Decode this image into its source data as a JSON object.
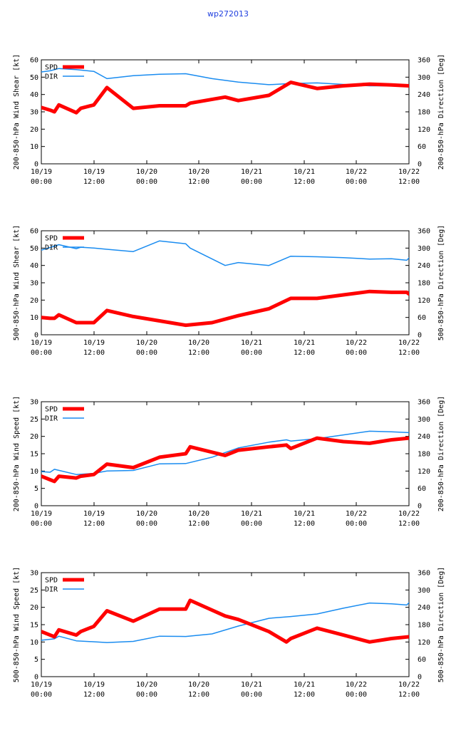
{
  "title": "wp272013",
  "colors": {
    "spd": "#ff0000",
    "dir": "#1a8cf0",
    "title": "#1f3fdf"
  },
  "x_ticks": [
    [
      "10/19",
      "00:00"
    ],
    [
      "10/19",
      "12:00"
    ],
    [
      "10/20",
      "00:00"
    ],
    [
      "10/20",
      "12:00"
    ],
    [
      "10/21",
      "00:00"
    ],
    [
      "10/21",
      "12:00"
    ],
    [
      "10/22",
      "00:00"
    ],
    [
      "10/22",
      "12:00"
    ]
  ],
  "chart_data": [
    {
      "type": "line",
      "ylabel": "200-850-hPa Wind Shear [kt]",
      "y2label": "200-850-hPa Direction [Deg]",
      "ylim": [
        0,
        60
      ],
      "y2lim": [
        0,
        360
      ],
      "yticks": [
        "0",
        "10",
        "20",
        "30",
        "40",
        "50",
        "60"
      ],
      "y2ticks": [
        "0",
        "60",
        "120",
        "180",
        "240",
        "300",
        "360"
      ],
      "xlim": [
        0,
        84
      ],
      "series": [
        {
          "name": "SPD",
          "axis": "left",
          "x": [
            0,
            2,
            3,
            4,
            8,
            9,
            12,
            15,
            21,
            27,
            33,
            34,
            42,
            45,
            52,
            57,
            63,
            69,
            75,
            80,
            84
          ],
          "y": [
            32.5,
            31,
            30,
            34,
            29.5,
            32,
            34,
            44,
            32,
            33.5,
            33.5,
            35,
            38.5,
            36.5,
            39.5,
            47,
            43.5,
            45,
            46,
            45.5,
            45
          ]
        },
        {
          "name": "DIR",
          "axis": "right",
          "x": [
            0,
            2,
            4,
            8,
            12,
            15,
            21,
            27,
            33,
            39,
            45,
            52,
            57,
            63,
            69,
            75,
            80,
            84
          ],
          "y": [
            318,
            322,
            330,
            326,
            320,
            295,
            305,
            310,
            312,
            295,
            283,
            274,
            278,
            280,
            275,
            270,
            270,
            270
          ]
        }
      ]
    },
    {
      "type": "line",
      "ylabel": "500-850-hPa Wind Shear [kt]",
      "y2label": "500-850-hPa Direction [Deg]",
      "ylim": [
        0,
        60
      ],
      "y2lim": [
        0,
        360
      ],
      "yticks": [
        "0",
        "10",
        "20",
        "30",
        "40",
        "50",
        "60"
      ],
      "y2ticks": [
        "0",
        "60",
        "120",
        "180",
        "240",
        "300",
        "360"
      ],
      "xlim": [
        0,
        84
      ],
      "series": [
        {
          "name": "SPD",
          "axis": "left",
          "x": [
            0,
            2,
            3,
            4,
            8,
            9,
            12,
            15,
            21,
            27,
            33,
            39,
            45,
            52,
            57,
            63,
            69,
            75,
            80,
            83.5,
            84
          ],
          "y": [
            10,
            9.5,
            9.5,
            11.5,
            7,
            7,
            7,
            14,
            10.5,
            8,
            5.5,
            7,
            11,
            15,
            21,
            21,
            23,
            25,
            24.5,
            24.5,
            23.5
          ]
        },
        {
          "name": "DIR",
          "axis": "right",
          "x": [
            0,
            2,
            4,
            8,
            9,
            12,
            15,
            21,
            27,
            33,
            34,
            42,
            45,
            52,
            57,
            63,
            69,
            75,
            80,
            83.5,
            84
          ],
          "y": [
            293,
            302,
            312,
            298,
            303,
            300,
            296,
            288,
            325,
            315,
            300,
            240,
            250,
            240,
            272,
            270,
            267,
            262,
            263,
            258,
            266
          ]
        }
      ]
    },
    {
      "type": "line",
      "ylabel": "200-850-hPa Wind Speed [kt]",
      "y2label": "200-850-hPa Direction [Deg]",
      "ylim": [
        0,
        30
      ],
      "y2lim": [
        0,
        360
      ],
      "yticks": [
        "0",
        "5",
        "10",
        "15",
        "20",
        "25",
        "30"
      ],
      "y2ticks": [
        "0",
        "60",
        "120",
        "180",
        "240",
        "300",
        "360"
      ],
      "xlim": [
        0,
        84
      ],
      "series": [
        {
          "name": "SPD",
          "axis": "left",
          "x": [
            0,
            2,
            3,
            4,
            8,
            9,
            12,
            15,
            21,
            27,
            33,
            34,
            42,
            45,
            52,
            56,
            57,
            63,
            69,
            75,
            80,
            84
          ],
          "y": [
            8.5,
            7.5,
            7,
            8.5,
            8,
            8.5,
            9,
            12,
            11,
            14,
            15,
            17,
            14.5,
            16,
            17,
            17.5,
            16.5,
            19.5,
            18.5,
            18,
            19,
            19.5
          ]
        },
        {
          "name": "DIR",
          "axis": "right",
          "x": [
            0,
            2,
            3,
            8,
            12,
            15,
            21,
            27,
            33,
            39,
            45,
            52,
            56,
            57,
            63,
            69,
            75,
            80,
            84
          ],
          "y": [
            118,
            116,
            126,
            108,
            112,
            120,
            122,
            145,
            146,
            168,
            200,
            220,
            228,
            224,
            232,
            245,
            258,
            256,
            253
          ]
        }
      ]
    },
    {
      "type": "line",
      "ylabel": "500-850-hPa Wind Speed [kt]",
      "y2label": "500-850-hPa Direction [Deg]",
      "ylim": [
        0,
        30
      ],
      "y2lim": [
        0,
        360
      ],
      "yticks": [
        "0",
        "5",
        "10",
        "15",
        "20",
        "25",
        "30"
      ],
      "y2ticks": [
        "0",
        "60",
        "120",
        "180",
        "240",
        "300",
        "360"
      ],
      "xlim": [
        0,
        84
      ],
      "series": [
        {
          "name": "SPD",
          "axis": "left",
          "x": [
            0,
            2,
            3,
            4,
            8,
            9,
            12,
            15,
            21,
            27,
            33,
            34,
            42,
            45,
            52,
            56,
            57,
            63,
            69,
            75,
            80,
            84
          ],
          "y": [
            13,
            12,
            11.5,
            13.5,
            12,
            13,
            14.5,
            19,
            16,
            19.5,
            19.5,
            22,
            17.5,
            16.5,
            13,
            10,
            11,
            14,
            12,
            10,
            11,
            11.5
          ]
        },
        {
          "name": "DIR",
          "axis": "right",
          "x": [
            0,
            3,
            4,
            8,
            15,
            21,
            27,
            33,
            39,
            45,
            52,
            57,
            63,
            69,
            75,
            80,
            83.5,
            84
          ],
          "y": [
            126,
            131,
            140,
            124,
            118,
            122,
            140,
            139,
            148,
            175,
            202,
            208,
            217,
            237,
            255,
            252,
            248,
            256
          ]
        }
      ]
    }
  ]
}
